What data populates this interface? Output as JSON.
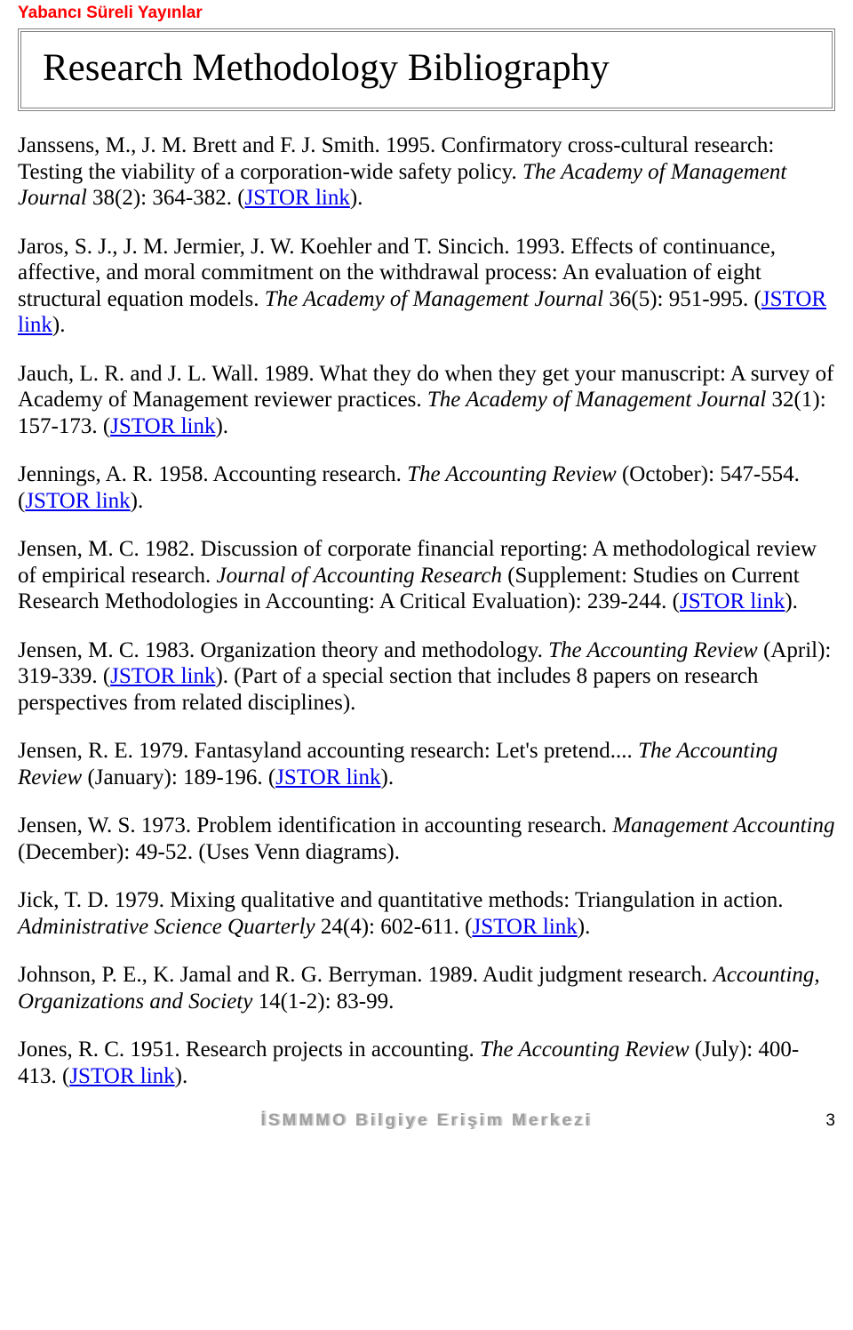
{
  "header": "Yabancı Süreli Yayınlar",
  "title": "Research Methodology Bibliography",
  "jstor_label": "JSTOR link",
  "entries": [
    {
      "pre": "Janssens, M., J. M. Brett and F. J. Smith. 1995. Confirmatory cross-cultural research: Testing the viability of a corporation-wide safety policy. ",
      "ital": "The Academy of Management Journal",
      "post": " 38(2): 364-382. (",
      "link": true,
      "tail": ")."
    },
    {
      "pre": "Jaros, S. J., J. M. Jermier, J. W. Koehler and T. Sincich. 1993. Effects of continuance, affective, and moral commitment on the withdrawal process: An evaluation of eight structural equation models. ",
      "ital": "The Academy of Management Journal",
      "post": " 36(5): 951-995. (",
      "link": true,
      "tail": ")."
    },
    {
      "pre": "Jauch, L. R. and J. L. Wall. 1989. What they do when they get your manuscript: A survey of Academy of Management reviewer practices. ",
      "ital": "The Academy of Management Journal",
      "post": " 32(1): 157-173. (",
      "link": true,
      "tail": ")."
    },
    {
      "pre": "Jennings, A. R. 1958. Accounting research. ",
      "ital": "The Accounting Review",
      "post": " (October): 547-554. (",
      "link": true,
      "tail": ")."
    },
    {
      "pre": "Jensen, M. C. 1982. Discussion of corporate financial reporting: A methodological review of empirical research. ",
      "ital": "Journal of Accounting Research",
      "post": " (Supplement: Studies on Current Research Methodologies in Accounting: A Critical Evaluation): 239-244. (",
      "link": true,
      "tail": ")."
    },
    {
      "pre": "Jensen, M. C. 1983. Organization theory and methodology. ",
      "ital": "The Accounting Review",
      "post": " (April): 319-339. (",
      "link": true,
      "tail": "). (Part of a special section that includes 8 papers on research perspectives from related disciplines)."
    },
    {
      "pre": "Jensen, R. E. 1979. Fantasyland accounting research: Let's pretend.... ",
      "ital": "The Accounting Review",
      "post": " (January): 189-196. (",
      "link": true,
      "tail": ")."
    },
    {
      "pre": "Jensen, W. S. 1973. Problem identification in accounting research. ",
      "ital": "Management Accounting",
      "post": " (December): 49-52. (Uses Venn diagrams).",
      "link": false,
      "tail": ""
    },
    {
      "pre": "Jick, T. D. 1979. Mixing qualitative and quantitative methods: Triangulation in action. ",
      "ital": "Administrative Science Quarterly",
      "post": " 24(4): 602-611. (",
      "link": true,
      "tail": ")."
    },
    {
      "pre": "Johnson, P. E., K. Jamal and R. G. Berryman. 1989. Audit judgment research. ",
      "ital": "Accounting, Organizations and Society",
      "post": " 14(1-2): 83-99.",
      "link": false,
      "tail": ""
    },
    {
      "pre": "Jones, R. C. 1951. Research projects in accounting. ",
      "ital": "The Accounting Review",
      "post": " (July): 400-413. (",
      "link": true,
      "tail": ")."
    }
  ],
  "footer": "İSMMMO Bilgiye Erişim Merkezi",
  "page_number": "3"
}
